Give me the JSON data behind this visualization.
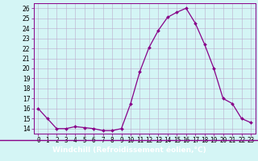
{
  "x": [
    0,
    1,
    2,
    3,
    4,
    5,
    6,
    7,
    8,
    9,
    10,
    11,
    12,
    13,
    14,
    15,
    16,
    17,
    18,
    19,
    20,
    21,
    22,
    23
  ],
  "y": [
    16.0,
    15.0,
    14.0,
    14.0,
    14.2,
    14.1,
    14.0,
    13.8,
    13.8,
    14.0,
    16.5,
    19.7,
    22.1,
    23.8,
    25.1,
    25.6,
    26.0,
    24.5,
    22.4,
    20.0,
    17.0,
    16.5,
    15.0,
    14.6
  ],
  "line_color": "#880088",
  "marker": "D",
  "marker_size": 2.0,
  "background_color": "#d4f5f5",
  "grid_color": "#bbaacc",
  "tick_fontsize": 5.5,
  "xlabel_fontsize": 6.5,
  "ylim": [
    13.5,
    26.5
  ],
  "yticks": [
    14,
    15,
    16,
    17,
    18,
    19,
    20,
    21,
    22,
    23,
    24,
    25,
    26
  ],
  "xlabel": "Windchill (Refroidissement éolien,°C)",
  "banner_color": "#6600aa",
  "banner_text_color": "#ffffff"
}
